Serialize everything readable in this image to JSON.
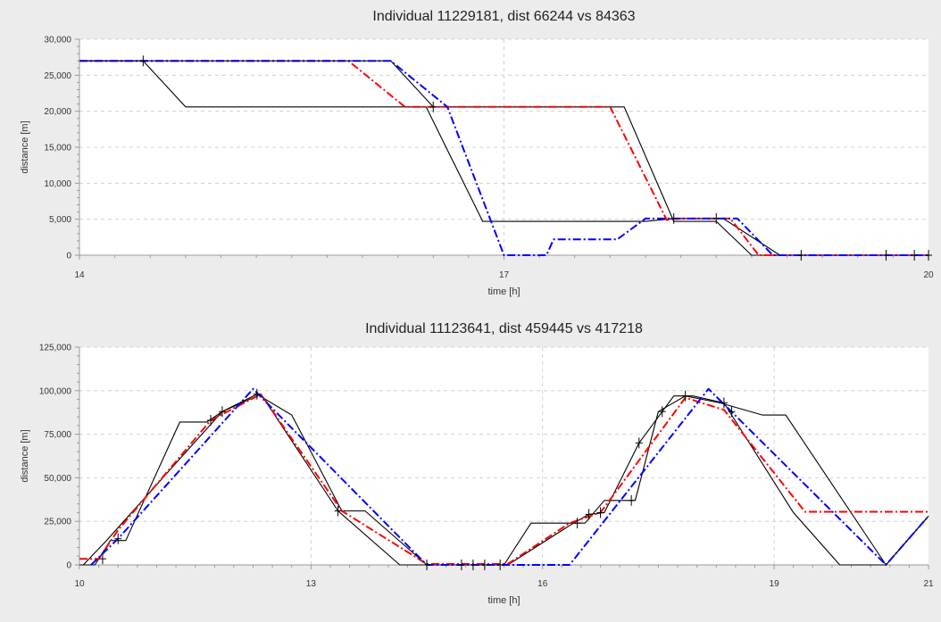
{
  "chart_data": [
    {
      "type": "line",
      "title": "Individual 11229181, dist 66244 vs 84363",
      "xlabel": "time [h]",
      "ylabel": "distance [m]",
      "xlim": [
        14,
        20
      ],
      "ylim": [
        0,
        30000
      ],
      "xticks": [
        14,
        17,
        20
      ],
      "xtick_labels": [
        "14",
        "17",
        "20"
      ],
      "yticks": [
        0,
        5000,
        10000,
        15000,
        20000,
        25000,
        30000
      ],
      "ytick_labels": [
        "0",
        "5,000",
        "10,000",
        "15,000",
        "20,000",
        "25,000",
        "30,000"
      ],
      "grid": true,
      "series": [
        {
          "color": "#ff0000",
          "style": "dashdot",
          "points": [
            [
              14.0,
              27000
            ],
            [
              15.9,
              27000
            ],
            [
              16.3,
              20600
            ],
            [
              17.75,
              20600
            ],
            [
              18.15,
              4900
            ],
            [
              18.25,
              5100
            ],
            [
              18.6,
              5100
            ],
            [
              18.8,
              0
            ],
            [
              20.0,
              0
            ]
          ]
        },
        {
          "color": "#0000ff",
          "style": "dashdot",
          "points": [
            [
              14.0,
              27000
            ],
            [
              16.2,
              27000
            ],
            [
              16.6,
              20600
            ],
            [
              17.0,
              0
            ],
            [
              17.3,
              0
            ],
            [
              17.35,
              2200
            ],
            [
              17.8,
              2200
            ],
            [
              18.0,
              5100
            ],
            [
              18.65,
              5100
            ],
            [
              18.9,
              0
            ],
            [
              20.0,
              0
            ]
          ]
        },
        {
          "color": "#000000",
          "style": "solid",
          "points": [
            [
              14.0,
              27000
            ],
            [
              14.45,
              27000
            ],
            [
              14.75,
              20600
            ],
            [
              16.45,
              20600
            ],
            [
              16.85,
              4700
            ],
            [
              18.0,
              4700
            ],
            [
              18.2,
              5100
            ],
            [
              18.55,
              5100
            ],
            [
              18.95,
              0
            ],
            [
              20.0,
              0
            ]
          ]
        },
        {
          "color": "#000000",
          "style": "solid",
          "points": [
            [
              14.0,
              27000
            ],
            [
              16.2,
              27000
            ],
            [
              16.5,
              20600
            ],
            [
              17.85,
              20600
            ],
            [
              18.2,
              4700
            ],
            [
              18.5,
              4700
            ],
            [
              18.75,
              0
            ],
            [
              20.0,
              0
            ]
          ]
        }
      ],
      "markers": [
        [
          14.45,
          27000
        ],
        [
          16.5,
          20600
        ],
        [
          18.2,
          5100
        ],
        [
          18.5,
          5100
        ],
        [
          19.1,
          0
        ],
        [
          19.7,
          0
        ],
        [
          19.9,
          0
        ],
        [
          20.0,
          0
        ]
      ]
    },
    {
      "type": "line",
      "title": "Individual 11123641, dist 459445 vs 417218",
      "xlabel": "time [h]",
      "ylabel": "distance [m]",
      "xlim": [
        10,
        21
      ],
      "ylim": [
        0,
        125000
      ],
      "xticks": [
        10,
        13,
        16,
        19,
        21
      ],
      "xtick_labels": [
        "10",
        "13",
        "16",
        "19",
        "21"
      ],
      "yticks": [
        0,
        25000,
        50000,
        75000,
        100000,
        125000
      ],
      "ytick_labels": [
        "0",
        "25,000",
        "50,000",
        "75,000",
        "100,000",
        "125,000"
      ],
      "grid": true,
      "series": [
        {
          "color": "#ff0000",
          "style": "dashdot",
          "points": [
            [
              10.0,
              3500
            ],
            [
              10.25,
              3500
            ],
            [
              10.5,
              20000
            ],
            [
              11.7,
              83000
            ],
            [
              12.35,
              98000
            ],
            [
              13.4,
              31000
            ],
            [
              14.5,
              500
            ],
            [
              15.55,
              500
            ],
            [
              16.35,
              24000
            ],
            [
              16.75,
              30000
            ],
            [
              17.85,
              96000
            ],
            [
              18.35,
              89000
            ],
            [
              19.4,
              30500
            ],
            [
              21.0,
              30500
            ]
          ]
        },
        {
          "color": "#0000ff",
          "style": "dashdot",
          "points": [
            [
              10.15,
              0
            ],
            [
              10.5,
              15000
            ],
            [
              12.25,
              101000
            ],
            [
              14.5,
              0
            ],
            [
              16.35,
              0
            ],
            [
              18.15,
              101000
            ],
            [
              20.45,
              0
            ],
            [
              21.0,
              28000
            ]
          ]
        },
        {
          "color": "#000000",
          "style": "solid",
          "points": [
            [
              10.0,
              0
            ],
            [
              10.2,
              0
            ],
            [
              10.4,
              14000
            ],
            [
              10.6,
              14000
            ],
            [
              11.3,
              82000
            ],
            [
              11.65,
              82000
            ],
            [
              11.85,
              88000
            ],
            [
              12.3,
              98000
            ],
            [
              12.75,
              86000
            ],
            [
              13.4,
              31000
            ],
            [
              13.7,
              31000
            ],
            [
              14.5,
              0
            ],
            [
              15.5,
              0
            ],
            [
              15.85,
              24000
            ],
            [
              16.55,
              24000
            ],
            [
              16.8,
              37000
            ],
            [
              17.2,
              37000
            ],
            [
              17.5,
              88000
            ],
            [
              17.85,
              97000
            ],
            [
              18.3,
              93000
            ],
            [
              18.85,
              86000
            ],
            [
              19.15,
              86000
            ],
            [
              20.45,
              0
            ],
            [
              21.0,
              28000
            ]
          ]
        },
        {
          "color": "#000000",
          "style": "solid",
          "points": [
            [
              10.05,
              0
            ],
            [
              10.35,
              14000
            ],
            [
              11.85,
              88000
            ],
            [
              12.35,
              98000
            ],
            [
              13.35,
              31000
            ],
            [
              14.15,
              0
            ],
            [
              15.55,
              0
            ],
            [
              16.4,
              24000
            ],
            [
              16.6,
              29000
            ],
            [
              16.8,
              30000
            ],
            [
              17.25,
              70000
            ],
            [
              17.7,
              97000
            ],
            [
              17.95,
              97000
            ],
            [
              18.35,
              93000
            ],
            [
              19.25,
              30000
            ],
            [
              19.85,
              0
            ],
            [
              20.45,
              0
            ],
            [
              21.0,
              28000
            ]
          ]
        }
      ],
      "markers": [
        [
          10.3,
          3500
        ],
        [
          10.5,
          15000
        ],
        [
          11.7,
          83000
        ],
        [
          11.85,
          88000
        ],
        [
          12.3,
          98000
        ],
        [
          13.35,
          31000
        ],
        [
          14.5,
          0
        ],
        [
          14.95,
          0
        ],
        [
          15.1,
          0
        ],
        [
          15.25,
          0
        ],
        [
          15.45,
          0
        ],
        [
          16.45,
          24000
        ],
        [
          16.6,
          29000
        ],
        [
          16.75,
          30000
        ],
        [
          17.15,
          37000
        ],
        [
          17.25,
          70000
        ],
        [
          17.55,
          88000
        ],
        [
          17.85,
          97000
        ],
        [
          18.35,
          93000
        ],
        [
          18.45,
          88000
        ]
      ]
    }
  ]
}
